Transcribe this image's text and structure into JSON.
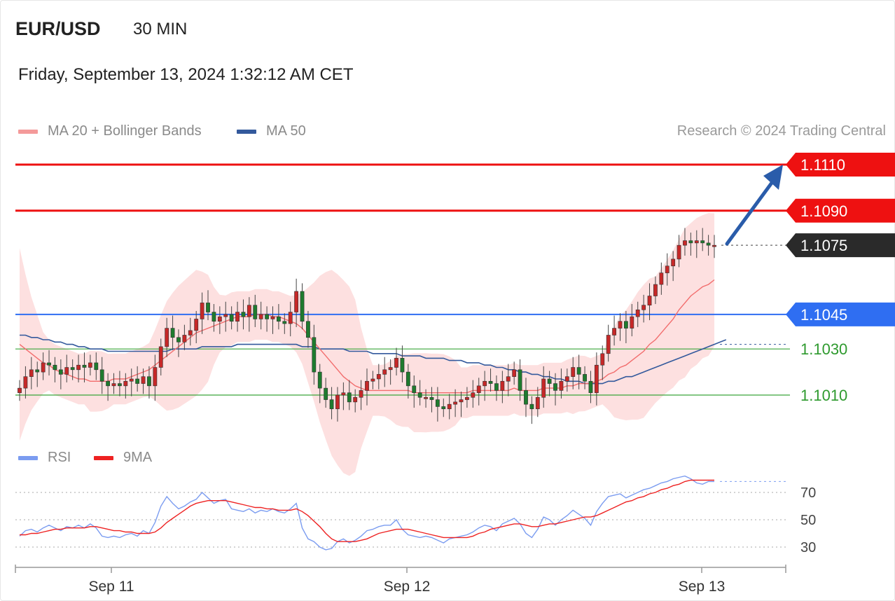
{
  "header": {
    "pair": "EUR/USD",
    "interval": "30 MIN",
    "datetime": "Friday, September 13, 2024 1:32:12 AM CET"
  },
  "legend": {
    "ma20_label": "MA 20 + Bollinger Bands",
    "ma50_label": "MA 50",
    "credit": "Research © 2024 Trading Central",
    "rsi_label": "RSI",
    "rsi_ma_label": "9MA"
  },
  "colors": {
    "resistance": "#ee1111",
    "pivot": "#2f6ef2",
    "support": "#3aa53a",
    "current": "#2a2a2a",
    "ma20": "#f26d6d",
    "ma50": "#33599c",
    "bollinger_fill": "#fde0e0",
    "candle_up": "#c62828",
    "candle_down": "#1e7b2e",
    "arrow": "#2a5caa",
    "rsi": "#7b9cf0",
    "rsi_ma": "#ee2222"
  },
  "chart_data": {
    "type": "candlestick",
    "instrument": "EUR/USD",
    "timeframe": "30 MIN",
    "x_ticks": [
      "Sep 11",
      "Sep 12",
      "Sep 13"
    ],
    "price_ylim": [
      1.099,
      1.1125
    ],
    "levels": [
      {
        "value": "1.1110",
        "kind": "resistance",
        "style": "tag"
      },
      {
        "value": "1.1090",
        "kind": "resistance",
        "style": "tag"
      },
      {
        "value": "1.1075",
        "kind": "current",
        "style": "tag"
      },
      {
        "value": "1.1045",
        "kind": "pivot",
        "style": "tag"
      },
      {
        "value": "1.1030",
        "kind": "support",
        "style": "text"
      },
      {
        "value": "1.1010",
        "kind": "support",
        "style": "text"
      }
    ],
    "target_arrow": {
      "from": 1.1075,
      "to": 1.111
    },
    "close": [
      1.1013,
      1.1018,
      1.1021,
      1.102,
      1.1024,
      1.1023,
      1.1021,
      1.1019,
      1.1022,
      1.1021,
      1.1023,
      1.1022,
      1.1024,
      1.1021,
      1.1016,
      1.1014,
      1.1015,
      1.1014,
      1.1016,
      1.1017,
      1.1015,
      1.1018,
      1.1014,
      1.1022,
      1.1031,
      1.1039,
      1.1035,
      1.1033,
      1.1036,
      1.1038,
      1.1043,
      1.105,
      1.1046,
      1.1042,
      1.1044,
      1.1045,
      1.1042,
      1.1046,
      1.1044,
      1.1049,
      1.1043,
      1.1045,
      1.1043,
      1.1044,
      1.1042,
      1.1041,
      1.1046,
      1.1055,
      1.1042,
      1.1035,
      1.102,
      1.1013,
      1.1008,
      1.1004,
      1.101,
      1.1011,
      1.1007,
      1.1009,
      1.1012,
      1.1016,
      1.1017,
      1.1019,
      1.1021,
      1.1022,
      1.1026,
      1.102,
      1.1014,
      1.1011,
      1.1009,
      1.1009,
      1.1008,
      1.1005,
      1.1004,
      1.1006,
      1.1007,
      1.1008,
      1.1009,
      1.1011,
      1.1014,
      1.1016,
      1.1015,
      1.1012,
      1.1016,
      1.1018,
      1.1021,
      1.1012,
      1.1006,
      1.1004,
      1.1009,
      1.1017,
      1.1015,
      1.1012,
      1.1016,
      1.1018,
      1.1022,
      1.1019,
      1.1016,
      1.1011,
      1.1023,
      1.1028,
      1.1036,
      1.1039,
      1.1042,
      1.1039,
      1.1044,
      1.1047,
      1.1049,
      1.1053,
      1.1058,
      1.1063,
      1.1066,
      1.1069,
      1.1075,
      1.1077,
      1.1076,
      1.1077,
      1.1076,
      1.1075,
      1.1075
    ],
    "ma20": [
      1.1032,
      1.103,
      1.1028,
      1.1026,
      1.1024,
      1.1023,
      1.1021,
      1.102,
      1.1019,
      1.1018,
      1.1017,
      1.1017,
      1.1016,
      1.1016,
      1.1016,
      1.1016,
      1.1017,
      1.1017,
      1.1017,
      1.1018,
      1.1019,
      1.102,
      1.1021,
      1.1023,
      1.1025,
      1.1027,
      1.1029,
      1.1031,
      1.1033,
      1.1035,
      1.1037,
      1.1038,
      1.1039,
      1.104,
      1.1041,
      1.1042,
      1.1043,
      1.1044,
      1.1044,
      1.1044,
      1.1045,
      1.1045,
      1.1045,
      1.1044,
      1.1044,
      1.1043,
      1.1042,
      1.1041,
      1.1039,
      1.1036,
      1.1033,
      1.103,
      1.1027,
      1.1024,
      1.1021,
      1.1018,
      1.1016,
      1.1014,
      1.1013,
      1.1012,
      1.1012,
      1.1012,
      1.1012,
      1.1012,
      1.1012,
      1.1012,
      1.1012,
      1.1011,
      1.1011,
      1.1011,
      1.1011,
      1.1011,
      1.1011,
      1.1011,
      1.1011,
      1.1011,
      1.1011,
      1.1012,
      1.1012,
      1.1012,
      1.1012,
      1.1012,
      1.1012,
      1.1012,
      1.1013,
      1.1012,
      1.1012,
      1.1012,
      1.1012,
      1.1013,
      1.1013,
      1.1013,
      1.1013,
      1.1014,
      1.1014,
      1.1015,
      1.1015,
      1.1015,
      1.1016,
      1.1017,
      1.1019,
      1.102,
      1.1022,
      1.1023,
      1.1025,
      1.1027,
      1.1029,
      1.1032,
      1.1034,
      1.1037,
      1.104,
      1.1043,
      1.1047,
      1.105,
      1.1053,
      1.1055,
      1.1057,
      1.1058,
      1.106
    ],
    "ma50": [
      1.1036,
      1.1036,
      1.1035,
      1.1035,
      1.1034,
      1.1034,
      1.1033,
      1.1033,
      1.1032,
      1.1032,
      1.1031,
      1.1031,
      1.103,
      1.103,
      1.103,
      1.1029,
      1.1029,
      1.1029,
      1.1029,
      1.1029,
      1.1029,
      1.1029,
      1.1029,
      1.1029,
      1.1029,
      1.1029,
      1.103,
      1.103,
      1.103,
      1.103,
      1.103,
      1.1031,
      1.1031,
      1.1031,
      1.1031,
      1.1031,
      1.1031,
      1.1032,
      1.1032,
      1.1032,
      1.1032,
      1.1032,
      1.1032,
      1.1032,
      1.1032,
      1.1032,
      1.1032,
      1.1032,
      1.1031,
      1.1031,
      1.1031,
      1.103,
      1.103,
      1.103,
      1.103,
      1.103,
      1.1029,
      1.1029,
      1.1029,
      1.1029,
      1.1028,
      1.1028,
      1.1028,
      1.1028,
      1.1028,
      1.1027,
      1.1027,
      1.1027,
      1.1027,
      1.1026,
      1.1026,
      1.1026,
      1.1026,
      1.1025,
      1.1025,
      1.1025,
      1.1024,
      1.1024,
      1.1024,
      1.1023,
      1.1023,
      1.1022,
      1.1022,
      1.1021,
      1.1021,
      1.102,
      1.102,
      1.1019,
      1.1019,
      1.1018,
      1.1018,
      1.1017,
      1.1017,
      1.1016,
      1.1016,
      1.1016,
      1.1015,
      1.1015,
      1.1015,
      1.1015,
      1.1016,
      1.1016,
      1.1017,
      1.1018,
      1.1018,
      1.1019,
      1.102,
      1.1021,
      1.1022,
      1.1023,
      1.1024,
      1.1025,
      1.1026,
      1.1027,
      1.1028,
      1.1029,
      1.103,
      1.1031,
      1.1032,
      1.1033,
      1.1034
    ],
    "rsi": [
      38,
      42,
      43,
      41,
      44,
      46,
      44,
      42,
      45,
      44,
      46,
      44,
      47,
      44,
      38,
      37,
      38,
      37,
      39,
      40,
      38,
      42,
      40,
      48,
      60,
      67,
      62,
      58,
      60,
      63,
      65,
      70,
      66,
      62,
      64,
      65,
      58,
      57,
      56,
      58,
      55,
      57,
      56,
      58,
      56,
      55,
      58,
      62,
      44,
      36,
      34,
      30,
      28,
      29,
      34,
      36,
      33,
      35,
      38,
      42,
      43,
      45,
      46,
      46,
      50,
      43,
      39,
      38,
      37,
      38,
      37,
      35,
      33,
      36,
      37,
      38,
      39,
      41,
      44,
      46,
      45,
      42,
      47,
      49,
      51,
      47,
      40,
      37,
      43,
      52,
      50,
      46,
      50,
      53,
      57,
      54,
      51,
      46,
      56,
      62,
      67,
      68,
      69,
      66,
      68,
      70,
      72,
      73,
      75,
      77,
      78,
      80,
      81,
      82,
      80,
      77,
      76,
      78,
      78
    ],
    "rsi_ma": [
      39,
      39,
      40,
      40,
      41,
      42,
      43,
      43,
      44,
      44,
      44,
      44,
      45,
      45,
      44,
      43,
      42,
      42,
      41,
      41,
      40,
      40,
      40,
      41,
      44,
      48,
      51,
      54,
      57,
      60,
      62,
      63,
      64,
      64,
      64,
      64,
      63,
      62,
      61,
      60,
      59,
      59,
      58,
      58,
      57,
      57,
      57,
      58,
      56,
      53,
      49,
      45,
      40,
      36,
      34,
      34,
      34,
      34,
      35,
      36,
      38,
      40,
      41,
      42,
      43,
      43,
      43,
      42,
      41,
      40,
      39,
      38,
      37,
      37,
      37,
      37,
      37,
      38,
      40,
      41,
      43,
      44,
      45,
      46,
      47,
      47,
      46,
      45,
      45,
      46,
      47,
      47,
      48,
      49,
      50,
      51,
      52,
      52,
      53,
      55,
      57,
      59,
      61,
      63,
      64,
      66,
      67,
      69,
      70,
      72,
      73,
      75,
      76,
      78,
      79,
      79,
      79,
      79,
      79
    ],
    "rsi_ylim": [
      20,
      90
    ],
    "rsi_ticks": [
      "70",
      "50",
      "30"
    ]
  }
}
